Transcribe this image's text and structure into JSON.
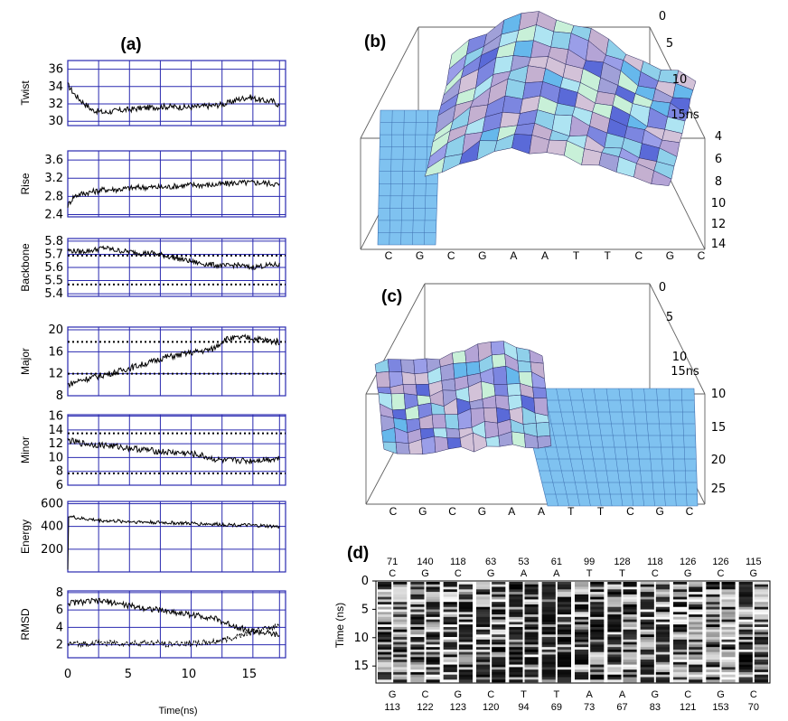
{
  "panel_labels": {
    "a": "(a)",
    "b": "(b)",
    "c": "(c)",
    "d": "(d)"
  },
  "a_xlabel": "Time(ns)",
  "surface_time_label": "15ns",
  "d_ylabel": "Time (ns)",
  "colors": {
    "grid": "#2a2ab0",
    "trace": "#000000",
    "surface": "#7fc2f0"
  },
  "chart_data": [
    {
      "type": "line",
      "title": "(a)",
      "xlabel": "Time(ns)",
      "xlim": [
        0,
        18
      ],
      "xticks": [
        "0",
        "5",
        "10",
        "15"
      ],
      "panels": [
        {
          "name": "twist",
          "ylabel": "Twist",
          "yticks": [
            "30",
            "32",
            "34",
            "36"
          ],
          "ytick_values": [
            30,
            32,
            34,
            36
          ],
          "ylim": [
            29.5,
            37
          ],
          "series": [
            {
              "name": "Twist",
              "x": [
                0,
                0.5,
                1,
                2,
                3,
                4,
                6,
                8,
                10,
                12,
                13,
                14,
                15,
                16,
                17,
                17.5
              ],
              "y": [
                34.2,
                33.2,
                32.5,
                31.3,
                31.0,
                31.2,
                31.5,
                31.7,
                31.6,
                31.8,
                32.0,
                32.5,
                32.8,
                32.4,
                32.3,
                31.8
              ]
            }
          ]
        },
        {
          "name": "rise",
          "ylabel": "Rise",
          "yticks": [
            "2.4",
            "2.8",
            "3.2",
            "3.6"
          ],
          "ytick_values": [
            2.4,
            2.8,
            3.2,
            3.6
          ],
          "ylim": [
            2.35,
            3.8
          ],
          "series": [
            {
              "name": "Rise",
              "x": [
                0,
                0.5,
                1,
                2,
                3,
                4,
                6,
                8,
                10,
                12,
                14,
                16,
                17,
                17.5
              ],
              "y": [
                2.6,
                2.8,
                2.85,
                2.9,
                2.95,
                2.95,
                3.0,
                3.0,
                3.05,
                3.05,
                3.1,
                3.1,
                3.08,
                3.05
              ]
            }
          ]
        },
        {
          "name": "backbone",
          "ylabel": "Backbone",
          "yticks": [
            "5.4",
            "5.5",
            "5.6",
            "5.7",
            "5.8"
          ],
          "ytick_values": [
            5.4,
            5.5,
            5.6,
            5.7,
            5.8
          ],
          "ylim": [
            5.38,
            5.82
          ],
          "reference_lines": [
            5.69,
            5.47
          ],
          "series": [
            {
              "name": "Backbone",
              "x": [
                0,
                1,
                2,
                3,
                4,
                5,
                6,
                7,
                8,
                9,
                10,
                11,
                12,
                13,
                14,
                15,
                16,
                17,
                17.5
              ],
              "y": [
                5.73,
                5.72,
                5.73,
                5.75,
                5.73,
                5.72,
                5.71,
                5.71,
                5.69,
                5.67,
                5.65,
                5.63,
                5.62,
                5.61,
                5.62,
                5.6,
                5.61,
                5.62,
                5.62
              ]
            }
          ]
        },
        {
          "name": "major",
          "ylabel": "Major",
          "yticks": [
            "8",
            "12",
            "16",
            "20"
          ],
          "ytick_values": [
            8,
            12,
            16,
            20
          ],
          "ylim": [
            8,
            20.5
          ],
          "reference_lines": [
            17.8,
            12.0
          ],
          "series": [
            {
              "name": "Major",
              "x": [
                0,
                1,
                2,
                3,
                4,
                5,
                6,
                7,
                8,
                9,
                10,
                11,
                12,
                13,
                14,
                15,
                16,
                17,
                17.5
              ],
              "y": [
                10.0,
                10.8,
                11.3,
                11.8,
                12.3,
                13.0,
                13.6,
                14.2,
                15.0,
                15.3,
                15.8,
                16.1,
                16.5,
                18.3,
                18.5,
                18.6,
                18.2,
                17.9,
                17.8
              ]
            }
          ]
        },
        {
          "name": "minor",
          "ylabel": "Minor",
          "yticks": [
            "6",
            "8",
            "10",
            "12",
            "14",
            "16"
          ],
          "ytick_values": [
            6,
            8,
            10,
            12,
            14,
            16
          ],
          "ylim": [
            6,
            16.2
          ],
          "reference_lines": [
            13.5,
            7.7
          ],
          "series": [
            {
              "name": "Minor",
              "x": [
                0,
                1,
                2,
                3,
                4,
                5,
                6,
                7,
                8,
                9,
                10,
                11,
                12,
                13,
                14,
                15,
                16,
                17,
                17.5
              ],
              "y": [
                12.5,
                12.1,
                11.9,
                11.8,
                11.6,
                11.4,
                11.2,
                11.0,
                10.8,
                10.7,
                10.6,
                10.3,
                9.8,
                9.5,
                9.6,
                9.5,
                9.7,
                9.8,
                9.9
              ]
            }
          ]
        },
        {
          "name": "energy",
          "ylabel": "Energy",
          "yticks": [
            "200",
            "400",
            "600"
          ],
          "ytick_values": [
            200,
            400,
            600
          ],
          "ylim": [
            0,
            620
          ],
          "series": [
            {
              "name": "Energy",
              "x": [
                0,
                0.05,
                0.1,
                0.3,
                1,
                3,
                6,
                9,
                12,
                15,
                17,
                17.5
              ],
              "y": [
                20,
                470,
                500,
                485,
                470,
                450,
                440,
                430,
                420,
                410,
                400,
                395
              ]
            }
          ]
        },
        {
          "name": "rmsd",
          "ylabel": "RMSD",
          "yticks": [
            "2",
            "4",
            "6",
            "8"
          ],
          "ytick_values": [
            2,
            4,
            6,
            8
          ],
          "ylim": [
            0.5,
            8.2
          ],
          "series": [
            {
              "name": "RMSD-1",
              "x": [
                0,
                1,
                2,
                3,
                4,
                5,
                6,
                7,
                8,
                9,
                10,
                11,
                12,
                13,
                14,
                15,
                16,
                17,
                17.5
              ],
              "y": [
                6.8,
                6.9,
                7.0,
                7.0,
                6.8,
                6.5,
                6.3,
                6.1,
                5.9,
                5.7,
                5.5,
                5.3,
                5.1,
                4.5,
                4.1,
                3.6,
                3.4,
                3.2,
                3.0
              ]
            },
            {
              "name": "RMSD-2",
              "x": [
                0,
                1,
                2,
                3,
                4,
                5,
                6,
                7,
                8,
                9,
                10,
                11,
                12,
                13,
                14,
                15,
                16,
                17,
                17.5
              ],
              "y": [
                2.1,
                2.1,
                2.2,
                2.2,
                2.2,
                2.1,
                2.2,
                2.2,
                2.1,
                2.1,
                2.2,
                2.2,
                2.3,
                2.6,
                3.0,
                3.4,
                3.7,
                4.0,
                4.3
              ]
            }
          ]
        }
      ]
    },
    {
      "type": "surface",
      "title": "(b)",
      "bases": [
        "C",
        "G",
        "C",
        "G",
        "A",
        "A",
        "T",
        "T",
        "C",
        "G",
        "C"
      ],
      "time_ticks": [
        "0",
        "5",
        "10",
        "15ns"
      ],
      "z_ticks": [
        "4",
        "6",
        "8",
        "10",
        "12",
        "14"
      ],
      "zlim": [
        4,
        14
      ]
    },
    {
      "type": "surface",
      "title": "(c)",
      "bases": [
        "C",
        "G",
        "C",
        "G",
        "A",
        "A",
        "T",
        "T",
        "C",
        "G",
        "C"
      ],
      "time_ticks": [
        "0",
        "5",
        "10",
        "15ns"
      ],
      "z_ticks": [
        "10",
        "15",
        "20",
        "25"
      ],
      "zlim": [
        7,
        25
      ]
    },
    {
      "type": "heatmap",
      "title": "(d)",
      "ylabel": "Time (ns)",
      "yticks": [
        "0",
        "5",
        "10",
        "15"
      ],
      "ylim": [
        0,
        18
      ],
      "strand1": [
        {
          "base": "C",
          "count": "71"
        },
        {
          "base": "G",
          "count": "140"
        },
        {
          "base": "C",
          "count": "118"
        },
        {
          "base": "G",
          "count": "63"
        },
        {
          "base": "A",
          "count": "53"
        },
        {
          "base": "A",
          "count": "61"
        },
        {
          "base": "T",
          "count": "99"
        },
        {
          "base": "T",
          "count": "128"
        },
        {
          "base": "C",
          "count": "118"
        },
        {
          "base": "G",
          "count": "126"
        },
        {
          "base": "C",
          "count": "126"
        },
        {
          "base": "G",
          "count": "115"
        }
      ],
      "strand2": [
        {
          "base": "G",
          "count": "113"
        },
        {
          "base": "C",
          "count": "122"
        },
        {
          "base": "G",
          "count": "123"
        },
        {
          "base": "C",
          "count": "120"
        },
        {
          "base": "T",
          "count": "94"
        },
        {
          "base": "T",
          "count": "69"
        },
        {
          "base": "A",
          "count": "73"
        },
        {
          "base": "A",
          "count": "67"
        },
        {
          "base": "G",
          "count": "83"
        },
        {
          "base": "C",
          "count": "121"
        },
        {
          "base": "G",
          "count": "153"
        },
        {
          "base": "C",
          "count": "70"
        }
      ]
    }
  ]
}
